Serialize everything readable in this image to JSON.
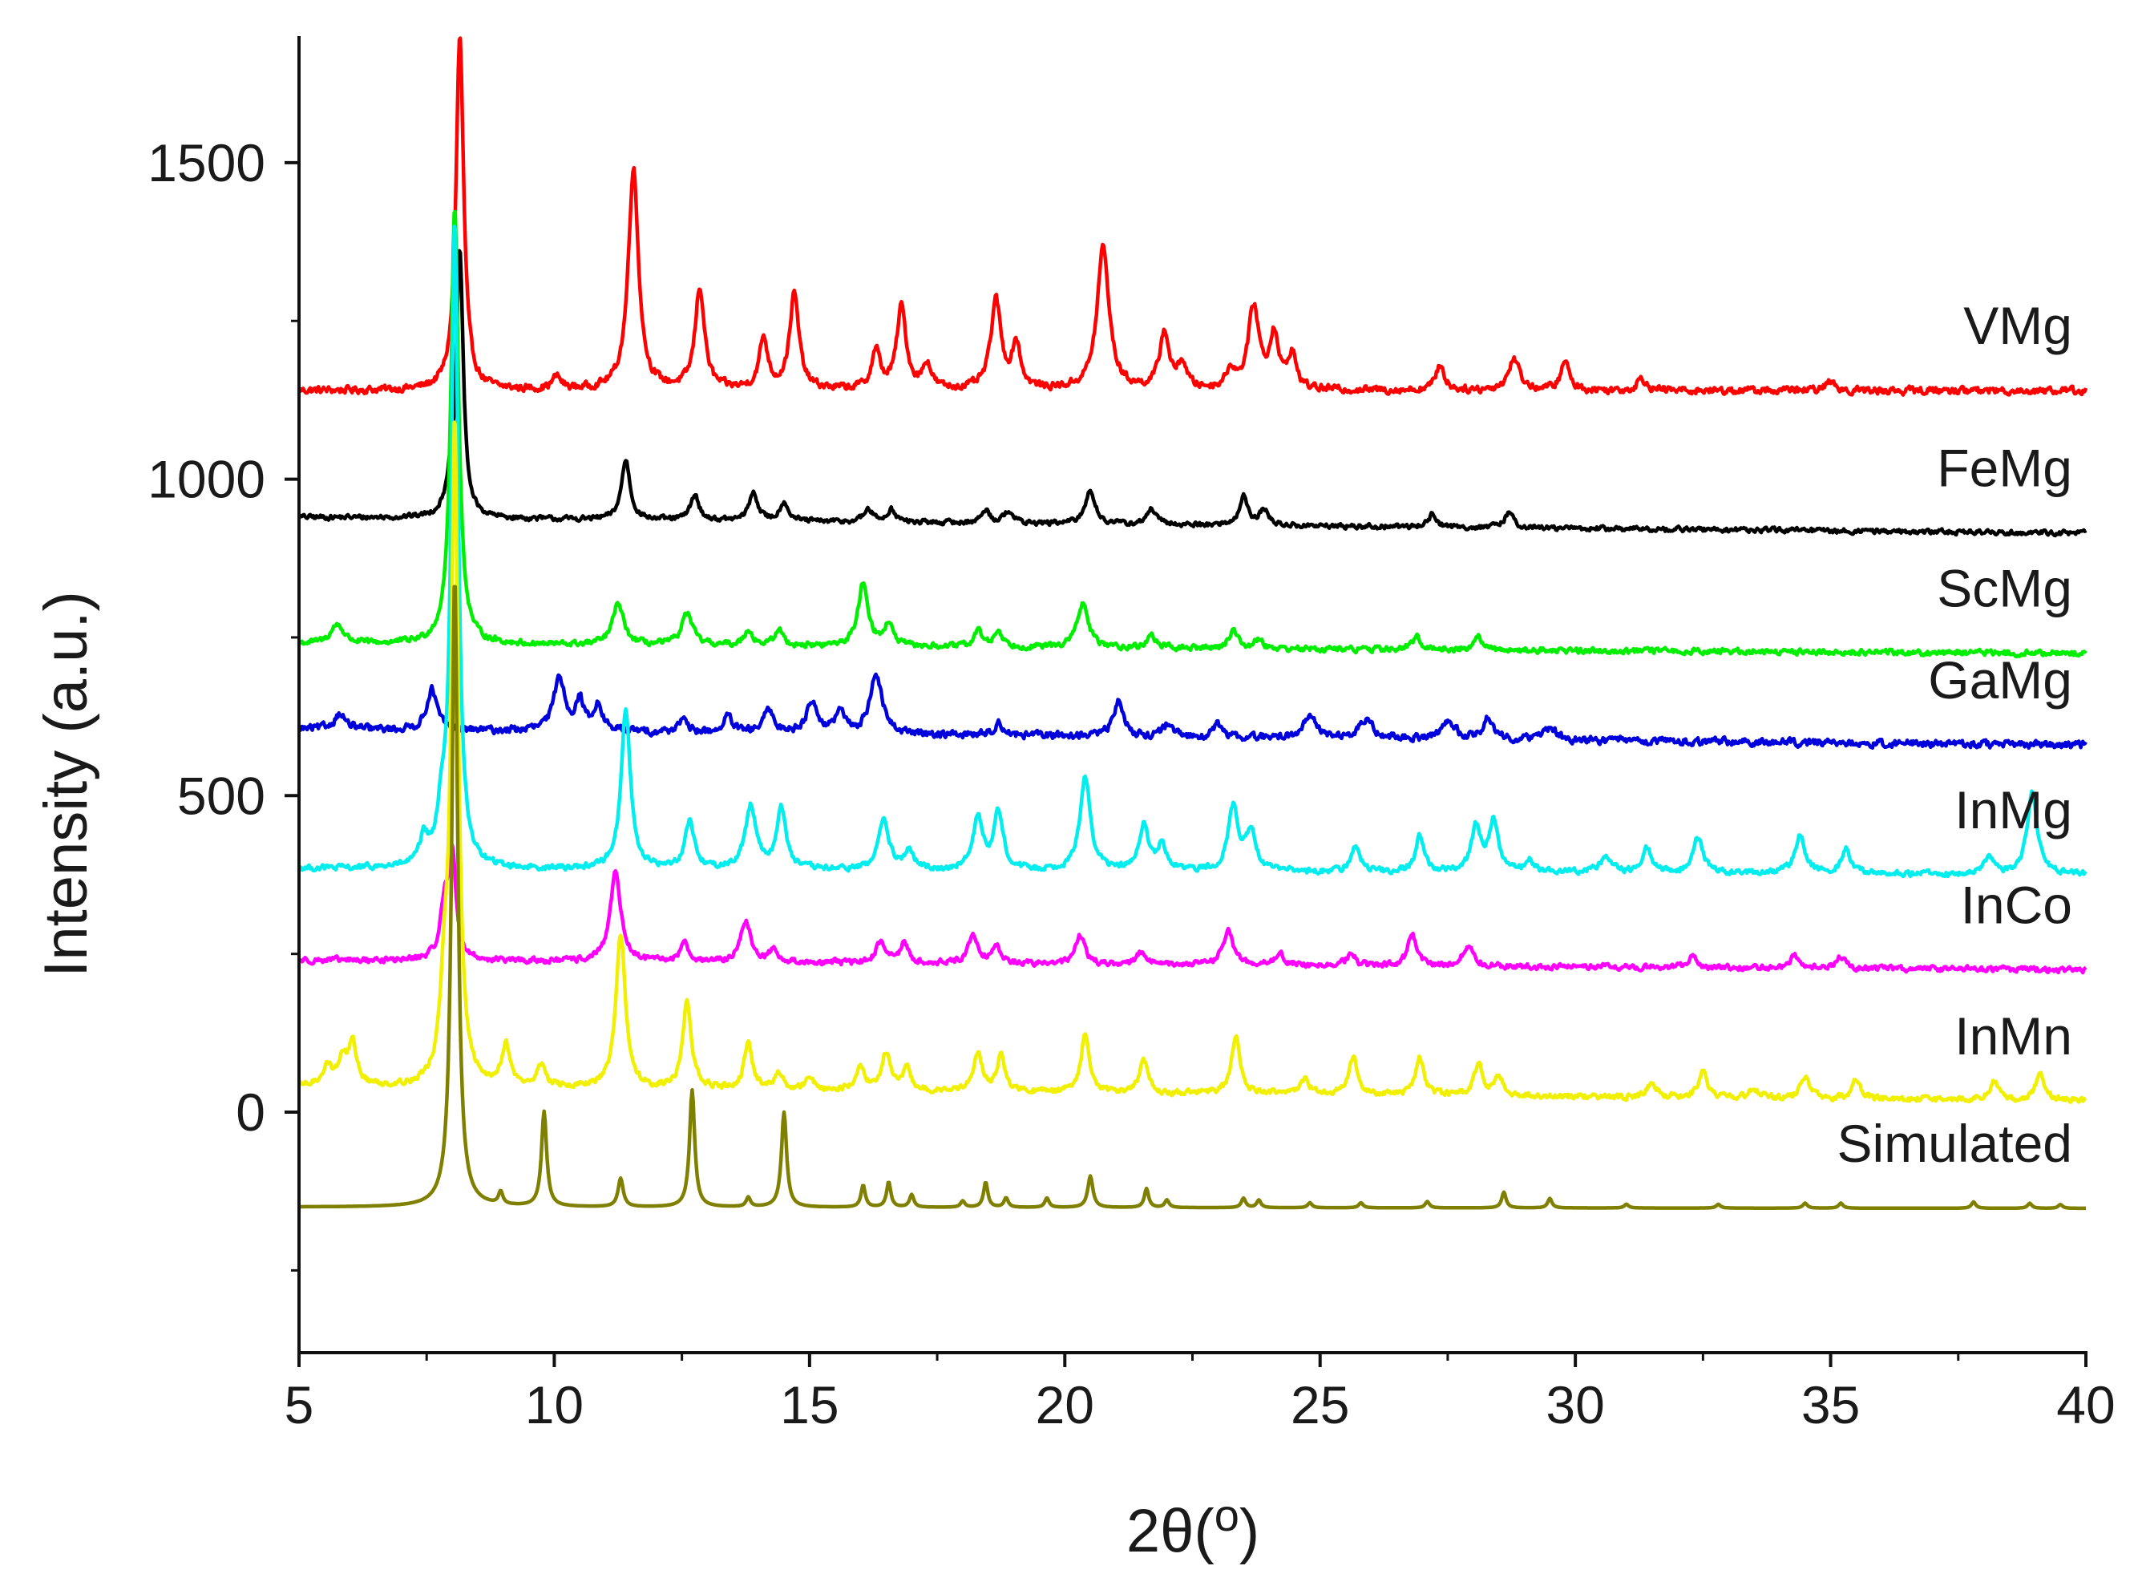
{
  "chart_data": {
    "type": "line",
    "title": "",
    "xlabel": "2θ(o)",
    "ylabel": "Intensity (a.u.)",
    "xlim": [
      5,
      40
    ],
    "ylim": [
      -380,
      1700
    ],
    "xticks": [
      5,
      10,
      15,
      20,
      25,
      30,
      35,
      40
    ],
    "yticks": [
      0,
      500,
      1000,
      1500
    ],
    "legend": "inline labels at right end of each trace",
    "grid": false,
    "series": [
      {
        "name": "VMg",
        "color": "#ff0000",
        "baseline": 1140,
        "end_baseline": 1140,
        "noise": 9,
        "peaks": [
          [
            8.15,
            560,
            0.09
          ],
          [
            10.05,
            20,
            0.1
          ],
          [
            11.55,
            350,
            0.12
          ],
          [
            12.85,
            160,
            0.11
          ],
          [
            14.1,
            80,
            0.1
          ],
          [
            14.7,
            150,
            0.11
          ],
          [
            16.3,
            60,
            0.1
          ],
          [
            16.8,
            130,
            0.11
          ],
          [
            17.3,
            40,
            0.1
          ],
          [
            18.65,
            140,
            0.12
          ],
          [
            19.05,
            70,
            0.1
          ],
          [
            20.75,
            225,
            0.14
          ],
          [
            21.95,
            90,
            0.11
          ],
          [
            22.3,
            40,
            0.1
          ],
          [
            23.25,
            30,
            0.1
          ],
          [
            23.7,
            130,
            0.13
          ],
          [
            24.1,
            85,
            0.1
          ],
          [
            24.45,
            55,
            0.1
          ],
          [
            27.35,
            40,
            0.1
          ],
          [
            28.8,
            50,
            0.13
          ],
          [
            29.8,
            45,
            0.1
          ],
          [
            31.3,
            20,
            0.1
          ],
          [
            35.0,
            15,
            0.1
          ]
        ]
      },
      {
        "name": "FeMg",
        "color": "#000000",
        "baseline": 940,
        "end_baseline": 915,
        "noise": 6,
        "peaks": [
          [
            7.95,
            40,
            0.1
          ],
          [
            8.15,
            420,
            0.08
          ],
          [
            11.4,
            95,
            0.1
          ],
          [
            12.75,
            40,
            0.1
          ],
          [
            13.9,
            45,
            0.1
          ],
          [
            14.5,
            30,
            0.1
          ],
          [
            16.15,
            20,
            0.1
          ],
          [
            16.6,
            20,
            0.1
          ],
          [
            18.45,
            20,
            0.1
          ],
          [
            18.9,
            20,
            0.1
          ],
          [
            20.5,
            55,
            0.11
          ],
          [
            21.7,
            25,
            0.1
          ],
          [
            23.5,
            45,
            0.1
          ],
          [
            23.9,
            25,
            0.1
          ],
          [
            27.2,
            20,
            0.1
          ],
          [
            28.7,
            25,
            0.1
          ]
        ]
      },
      {
        "name": "ScMg",
        "color": "#00ee00",
        "baseline": 740,
        "end_baseline": 725,
        "noise": 7,
        "peaks": [
          [
            5.75,
            30,
            0.15
          ],
          [
            8.05,
            690,
            0.09
          ],
          [
            11.25,
            65,
            0.13
          ],
          [
            12.6,
            50,
            0.13
          ],
          [
            13.8,
            25,
            0.1
          ],
          [
            14.4,
            25,
            0.1
          ],
          [
            16.05,
            100,
            0.12
          ],
          [
            16.55,
            35,
            0.1
          ],
          [
            18.3,
            25,
            0.1
          ],
          [
            18.7,
            25,
            0.1
          ],
          [
            20.35,
            70,
            0.13
          ],
          [
            21.7,
            20,
            0.1
          ],
          [
            23.3,
            30,
            0.1
          ],
          [
            23.8,
            15,
            0.1
          ],
          [
            26.9,
            20,
            0.1
          ],
          [
            28.1,
            20,
            0.1
          ]
        ]
      },
      {
        "name": "GaMg",
        "color": "#0000dd",
        "baseline": 605,
        "end_baseline": 580,
        "noise": 9,
        "peaks": [
          [
            5.8,
            25,
            0.13
          ],
          [
            7.6,
            65,
            0.12
          ],
          [
            10.1,
            85,
            0.13
          ],
          [
            10.5,
            45,
            0.1
          ],
          [
            10.85,
            40,
            0.11
          ],
          [
            12.5,
            20,
            0.1
          ],
          [
            13.4,
            25,
            0.1
          ],
          [
            14.2,
            35,
            0.12
          ],
          [
            15.05,
            50,
            0.13
          ],
          [
            15.6,
            35,
            0.1
          ],
          [
            16.3,
            95,
            0.14
          ],
          [
            18.7,
            20,
            0.1
          ],
          [
            21.05,
            55,
            0.12
          ],
          [
            22.0,
            20,
            0.1
          ],
          [
            23.0,
            20,
            0.1
          ],
          [
            24.8,
            35,
            0.15
          ],
          [
            25.9,
            30,
            0.15
          ],
          [
            27.5,
            30,
            0.15
          ],
          [
            28.3,
            35,
            0.12
          ],
          [
            29.5,
            20,
            0.15
          ]
        ]
      },
      {
        "name": "InMg",
        "color": "#00eeee",
        "baseline": 385,
        "end_baseline": 375,
        "noise": 7,
        "peaks": [
          [
            7.45,
            40,
            0.1
          ],
          [
            7.8,
            70,
            0.1
          ],
          [
            8.05,
            1020,
            0.08
          ],
          [
            11.4,
            250,
            0.11
          ],
          [
            12.65,
            75,
            0.11
          ],
          [
            13.85,
            100,
            0.13
          ],
          [
            14.45,
            95,
            0.11
          ],
          [
            16.45,
            80,
            0.12
          ],
          [
            16.95,
            30,
            0.1
          ],
          [
            18.3,
            80,
            0.12
          ],
          [
            18.7,
            90,
            0.11
          ],
          [
            20.4,
            150,
            0.12
          ],
          [
            21.55,
            70,
            0.11
          ],
          [
            21.9,
            40,
            0.1
          ],
          [
            23.3,
            100,
            0.12
          ],
          [
            23.65,
            65,
            0.11
          ],
          [
            25.7,
            40,
            0.1
          ],
          [
            26.95,
            55,
            0.1
          ],
          [
            28.05,
            70,
            0.11
          ],
          [
            28.4,
            80,
            0.11
          ],
          [
            29.1,
            20,
            0.1
          ],
          [
            30.6,
            25,
            0.15
          ],
          [
            31.4,
            40,
            0.1
          ],
          [
            32.4,
            55,
            0.12
          ],
          [
            34.4,
            60,
            0.12
          ],
          [
            35.3,
            40,
            0.1
          ],
          [
            38.1,
            30,
            0.1
          ],
          [
            38.95,
            130,
            0.12
          ]
        ]
      },
      {
        "name": "InCo",
        "color": "#ff00ff",
        "baseline": 240,
        "end_baseline": 225,
        "noise": 7,
        "peaks": [
          [
            7.85,
            75,
            0.1
          ],
          [
            8.0,
            160,
            0.09
          ],
          [
            11.2,
            145,
            0.12
          ],
          [
            12.55,
            30,
            0.1
          ],
          [
            13.75,
            65,
            0.12
          ],
          [
            14.3,
            20,
            0.1
          ],
          [
            16.4,
            35,
            0.11
          ],
          [
            16.85,
            30,
            0.1
          ],
          [
            18.2,
            45,
            0.11
          ],
          [
            18.65,
            30,
            0.1
          ],
          [
            20.3,
            45,
            0.11
          ],
          [
            21.5,
            20,
            0.1
          ],
          [
            23.2,
            55,
            0.12
          ],
          [
            24.2,
            20,
            0.1
          ],
          [
            25.6,
            20,
            0.1
          ],
          [
            26.8,
            50,
            0.1
          ],
          [
            27.9,
            35,
            0.12
          ],
          [
            32.3,
            20,
            0.1
          ],
          [
            34.3,
            20,
            0.1
          ],
          [
            35.2,
            20,
            0.1
          ]
        ]
      },
      {
        "name": "InMn",
        "color": "#f0f000",
        "baseline": 40,
        "end_baseline": 18,
        "noise": 7,
        "peaks": [
          [
            5.55,
            30,
            0.12
          ],
          [
            5.85,
            40,
            0.1
          ],
          [
            6.05,
            65,
            0.1
          ],
          [
            7.85,
            130,
            0.1
          ],
          [
            8.05,
            1040,
            0.08
          ],
          [
            9.05,
            65,
            0.1
          ],
          [
            9.75,
            35,
            0.1
          ],
          [
            11.3,
            245,
            0.11
          ],
          [
            12.6,
            140,
            0.1
          ],
          [
            13.8,
            70,
            0.1
          ],
          [
            14.4,
            25,
            0.1
          ],
          [
            15.0,
            20,
            0.1
          ],
          [
            16.0,
            40,
            0.1
          ],
          [
            16.5,
            60,
            0.1
          ],
          [
            16.9,
            35,
            0.1
          ],
          [
            18.3,
            60,
            0.1
          ],
          [
            18.75,
            55,
            0.1
          ],
          [
            20.4,
            90,
            0.1
          ],
          [
            21.55,
            50,
            0.1
          ],
          [
            23.35,
            90,
            0.1
          ],
          [
            24.7,
            25,
            0.1
          ],
          [
            25.65,
            60,
            0.1
          ],
          [
            26.95,
            60,
            0.1
          ],
          [
            28.1,
            50,
            0.1
          ],
          [
            28.5,
            30,
            0.1
          ],
          [
            31.5,
            25,
            0.1
          ],
          [
            32.5,
            40,
            0.1
          ],
          [
            33.5,
            15,
            0.1
          ],
          [
            34.5,
            35,
            0.1
          ],
          [
            35.5,
            30,
            0.1
          ],
          [
            38.2,
            30,
            0.1
          ],
          [
            39.1,
            40,
            0.1
          ]
        ]
      },
      {
        "name": "Simulated",
        "color": "#808000",
        "baseline": -150,
        "end_baseline": -152,
        "noise": 0,
        "peaks": [
          [
            8.05,
            1000,
            0.07
          ],
          [
            8.95,
            20,
            0.05
          ],
          [
            9.8,
            150,
            0.06
          ],
          [
            11.3,
            45,
            0.06
          ],
          [
            12.7,
            185,
            0.06
          ],
          [
            13.8,
            15,
            0.05
          ],
          [
            14.5,
            150,
            0.06
          ],
          [
            16.05,
            35,
            0.05
          ],
          [
            16.55,
            40,
            0.05
          ],
          [
            17.0,
            20,
            0.05
          ],
          [
            18.0,
            10,
            0.05
          ],
          [
            18.45,
            40,
            0.05
          ],
          [
            18.85,
            15,
            0.05
          ],
          [
            19.65,
            15,
            0.05
          ],
          [
            20.5,
            50,
            0.06
          ],
          [
            21.6,
            30,
            0.05
          ],
          [
            22.0,
            12,
            0.05
          ],
          [
            23.5,
            15,
            0.05
          ],
          [
            23.8,
            12,
            0.05
          ],
          [
            24.8,
            8,
            0.05
          ],
          [
            25.8,
            8,
            0.05
          ],
          [
            27.1,
            10,
            0.05
          ],
          [
            28.6,
            25,
            0.05
          ],
          [
            29.5,
            15,
            0.05
          ],
          [
            31.0,
            6,
            0.05
          ],
          [
            32.8,
            6,
            0.05
          ],
          [
            34.5,
            8,
            0.05
          ],
          [
            35.2,
            8,
            0.05
          ],
          [
            37.8,
            10,
            0.05
          ],
          [
            38.9,
            8,
            0.05
          ],
          [
            39.5,
            6,
            0.05
          ]
        ]
      }
    ]
  }
}
